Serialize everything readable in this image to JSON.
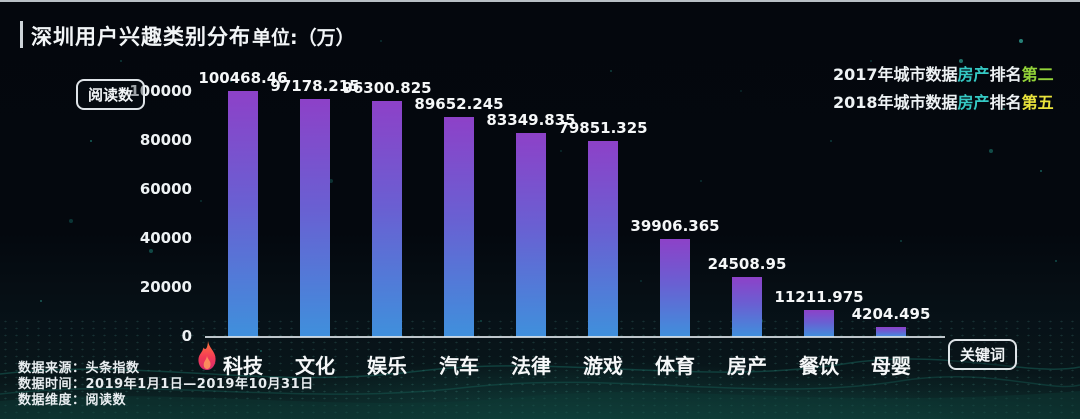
{
  "header": {
    "title": "深圳用户兴趣类别分布",
    "unit": "单位:（万）"
  },
  "rank_notes": {
    "keyword_color": "#35c9c4",
    "lines": [
      {
        "prefix": "2017年城市数据",
        "keyword": "房产",
        "mid": "排名",
        "rank": "第二",
        "rank_color": "#93d339"
      },
      {
        "prefix": "2018年城市数据",
        "keyword": "房产",
        "mid": "排名",
        "rank": "第五",
        "rank_color": "#e8e23c"
      }
    ]
  },
  "axis_labels": {
    "y_box": "阅读数",
    "x_box": "关键词"
  },
  "footer": {
    "lines": [
      "数据来源：头条指数",
      "数据时间：2019年1月1日—2019年10月31日",
      "数据维度：阅读数"
    ]
  },
  "chart_data": {
    "type": "bar",
    "title": "深圳用户兴趣类别分布",
    "unit": "万",
    "ylabel": "阅读数",
    "xlabel": "关键词",
    "categories": [
      "科技",
      "文化",
      "娱乐",
      "汽车",
      "法律",
      "游戏",
      "体育",
      "房产",
      "餐饮",
      "母婴"
    ],
    "values": [
      100468.46,
      97178.215,
      96300.825,
      89652.245,
      83349.835,
      79851.325,
      39906.365,
      24508.95,
      11211.975,
      4204.495
    ],
    "yticks": [
      0,
      20000,
      40000,
      60000,
      80000,
      100000
    ],
    "ylim": [
      0,
      110000
    ],
    "grid": false,
    "legend": "none",
    "bar_gradient_top": "#8d41c8",
    "bar_gradient_bottom": "#3f90dc",
    "flame_marked_category": "科技"
  }
}
